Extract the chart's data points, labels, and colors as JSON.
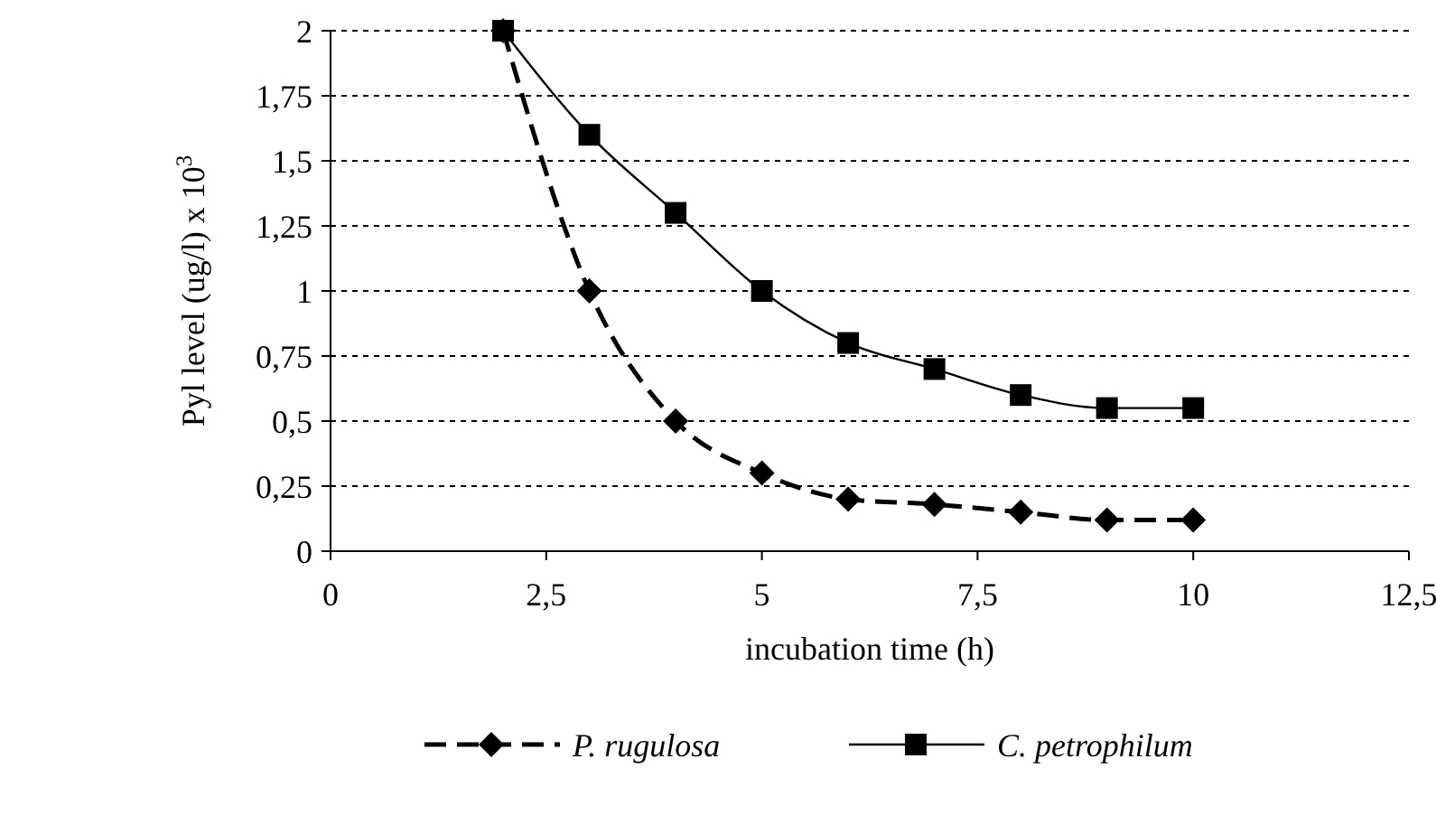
{
  "chart_data": {
    "type": "line",
    "xlabel": "incubation time (h)",
    "ylabel": "Pyl level (ug/l) x 10$^{3}$",
    "xlim": [
      0,
      12.5
    ],
    "ylim": [
      0,
      2
    ],
    "xticks": [
      0,
      {
        "value": 2.5,
        "label": "2,5"
      },
      5,
      {
        "value": 7.5,
        "label": "7,5"
      },
      10,
      {
        "value": 12.5,
        "label": "12,5"
      }
    ],
    "yticks": [
      0,
      {
        "value": 0.25,
        "label": "0,25"
      },
      {
        "value": 0.5,
        "label": "0,5"
      },
      {
        "value": 0.75,
        "label": "0,75"
      },
      1,
      {
        "value": 1.25,
        "label": "1,25"
      },
      {
        "value": 1.5,
        "label": "1,5"
      },
      {
        "value": 1.75,
        "label": "1,75"
      },
      2
    ],
    "grid": "y",
    "legend": "bottom",
    "series": [
      {
        "name": "P. rugulosa",
        "color": "#000000",
        "marker": "diamond",
        "line_style": "dashed",
        "x": [
          2,
          3,
          4,
          5,
          6,
          7,
          8,
          9,
          10
        ],
        "values": [
          2,
          1,
          0.5,
          0.3,
          0.2,
          0.18,
          0.15,
          0.12,
          0.12
        ]
      },
      {
        "name": "C. petrophilum",
        "color": "#000000",
        "marker": "square",
        "line_style": "solid",
        "x": [
          2,
          3,
          4,
          5,
          6,
          7,
          8,
          9,
          10
        ],
        "values": [
          2,
          1.6,
          1.3,
          1,
          0.8,
          0.7,
          0.6,
          0.55,
          0.55
        ]
      }
    ]
  }
}
